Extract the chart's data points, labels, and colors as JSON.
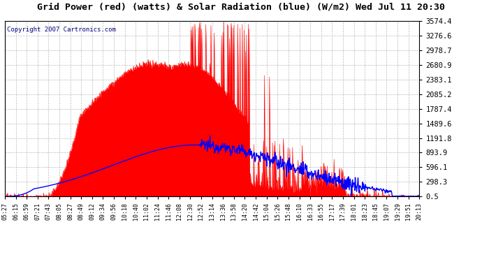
{
  "title": "Grid Power (red) (watts) & Solar Radiation (blue) (W/m2) Wed Jul 11 20:30",
  "copyright": "Copyright 2007 Cartronics.com",
  "background_color": "#ffffff",
  "plot_bg_color": "#ffffff",
  "grid_color": "#bbbbbb",
  "red_color": "#ff0000",
  "blue_color": "#0000ff",
  "ylabel_right": [
    "3574.4",
    "3276.6",
    "2978.7",
    "2680.9",
    "2383.1",
    "2085.2",
    "1787.4",
    "1489.6",
    "1191.8",
    "893.9",
    "596.1",
    "298.3",
    "0.5"
  ],
  "ymax": 3574.4,
  "ymin": 0.5,
  "n_points": 900,
  "x_tick_labels": [
    "05:27",
    "06:15",
    "06:59",
    "07:21",
    "07:43",
    "08:05",
    "08:27",
    "08:49",
    "09:12",
    "09:34",
    "09:56",
    "10:18",
    "10:40",
    "11:02",
    "11:24",
    "11:46",
    "12:08",
    "12:30",
    "12:52",
    "13:14",
    "13:36",
    "13:58",
    "14:20",
    "14:42",
    "15:04",
    "15:26",
    "15:48",
    "16:10",
    "16:33",
    "16:55",
    "17:17",
    "17:39",
    "18:01",
    "18:23",
    "18:45",
    "19:07",
    "19:29",
    "19:51",
    "20:13"
  ]
}
